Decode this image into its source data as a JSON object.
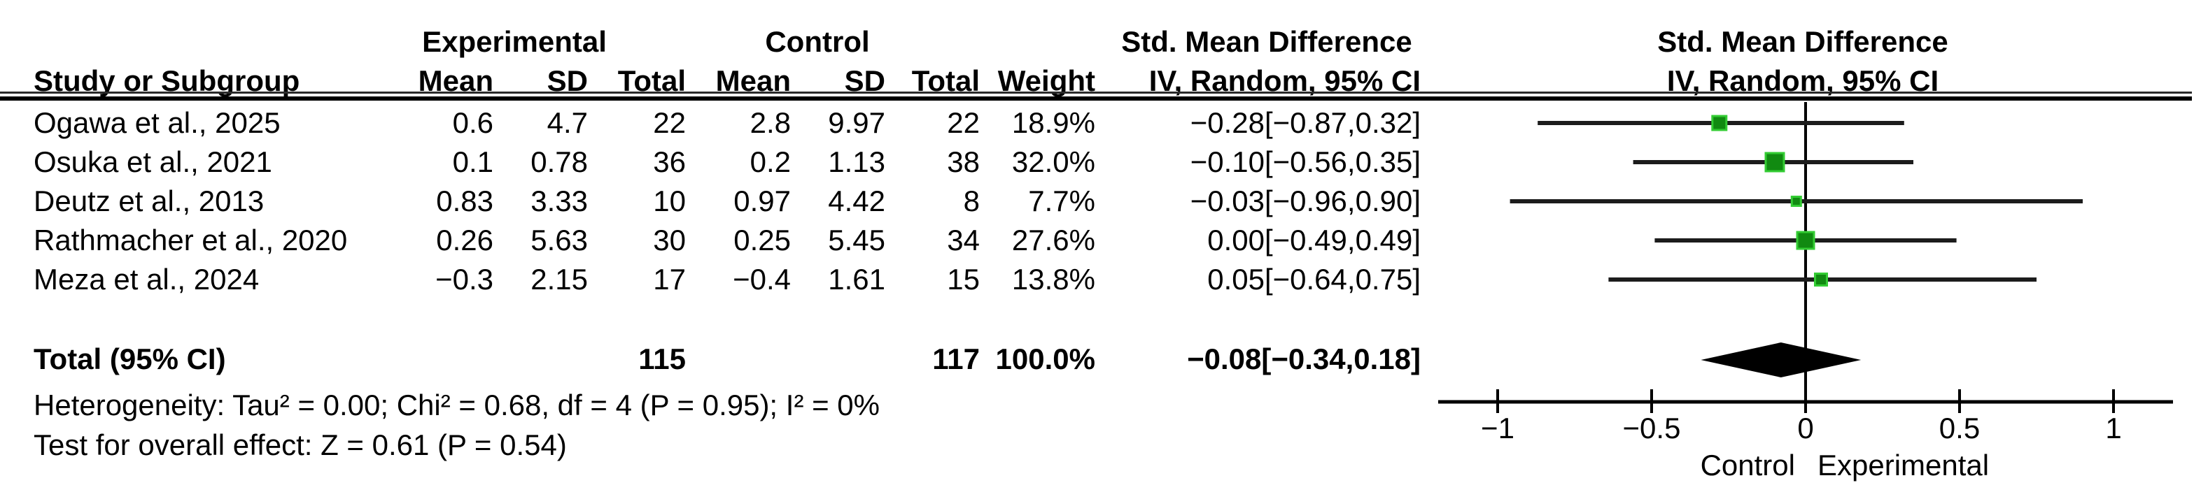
{
  "header": {
    "group_experimental": "Experimental",
    "group_control": "Control",
    "group_smd_table": "Std. Mean Difference",
    "plot_smd": "Std. Mean Difference",
    "plot_method": "IV, Random, 95% CI",
    "col_study": "Study or Subgroup",
    "col_mean": "Mean",
    "col_sd": "SD",
    "col_total": "Total",
    "col_weight": "Weight",
    "col_method": "IV, Random, 95% CI"
  },
  "footer": {
    "heterogeneity": "Heterogeneity: Tau² = 0.00; Chi² = 0.68, df = 4 (P = 0.95); I² = 0%",
    "overall_effect": "Test for overall effect: Z = 0.61 (P = 0.54)"
  },
  "chart_data": {
    "type": "scatter",
    "subtype": "forest-plot",
    "effect_measure": "Std. Mean Difference",
    "method": "IV, Random, 95% CI",
    "studies": [
      {
        "study": "Ogawa et al., 2025",
        "exp_mean": "0.6",
        "exp_sd": "4.7",
        "exp_total": "22",
        "ctl_mean": "2.8",
        "ctl_sd": "9.97",
        "ctl_total": "22",
        "weight": "18.9%",
        "weight_pct": 18.9,
        "ci_text": "−0.28[−0.87,0.32]",
        "smd": -0.28,
        "ci_low": -0.87,
        "ci_high": 0.32
      },
      {
        "study": "Osuka et al., 2021",
        "exp_mean": "0.1",
        "exp_sd": "0.78",
        "exp_total": "36",
        "ctl_mean": "0.2",
        "ctl_sd": "1.13",
        "ctl_total": "38",
        "weight": "32.0%",
        "weight_pct": 32.0,
        "ci_text": "−0.10[−0.56,0.35]",
        "smd": -0.1,
        "ci_low": -0.56,
        "ci_high": 0.35
      },
      {
        "study": "Deutz et al., 2013",
        "exp_mean": "0.83",
        "exp_sd": "3.33",
        "exp_total": "10",
        "ctl_mean": "0.97",
        "ctl_sd": "4.42",
        "ctl_total": "8",
        "weight": "7.7%",
        "weight_pct": 7.7,
        "ci_text": "−0.03[−0.96,0.90]",
        "smd": -0.03,
        "ci_low": -0.96,
        "ci_high": 0.9
      },
      {
        "study": "Rathmacher et al., 2020",
        "exp_mean": "0.26",
        "exp_sd": "5.63",
        "exp_total": "30",
        "ctl_mean": "0.25",
        "ctl_sd": "5.45",
        "ctl_total": "34",
        "weight": "27.6%",
        "weight_pct": 27.6,
        "ci_text": "0.00[−0.49,0.49]",
        "smd": 0.0,
        "ci_low": -0.49,
        "ci_high": 0.49
      },
      {
        "study": "Meza et al., 2024",
        "exp_mean": "−0.3",
        "exp_sd": "2.15",
        "exp_total": "17",
        "ctl_mean": "−0.4",
        "ctl_sd": "1.61",
        "ctl_total": "15",
        "weight": "13.8%",
        "weight_pct": 13.8,
        "ci_text": "0.05[−0.64,0.75]",
        "smd": 0.05,
        "ci_low": -0.64,
        "ci_high": 0.75
      }
    ],
    "total": {
      "label": "Total (95% CI)",
      "exp_total": "115",
      "ctl_total": "117",
      "weight": "100.0%",
      "ci_text": "−0.08[−0.34,0.18]",
      "smd": -0.08,
      "ci_low": -0.34,
      "ci_high": 0.18
    },
    "axis": {
      "xmin": -1.19,
      "xmax": 1.19,
      "ticks": [
        -1,
        -0.5,
        0,
        0.5,
        1
      ],
      "tick_labels": [
        "−1",
        "−0.5",
        "0",
        "0.5",
        "1"
      ],
      "left_label": "Control",
      "right_label": "Experimental",
      "grid": false,
      "legend": "none"
    },
    "colors": {
      "marker_fill": "#118a11",
      "marker_edge": "#33cc33",
      "ci_line": "#1c1c1c",
      "diamond": "#000000",
      "axis": "#000000"
    }
  }
}
